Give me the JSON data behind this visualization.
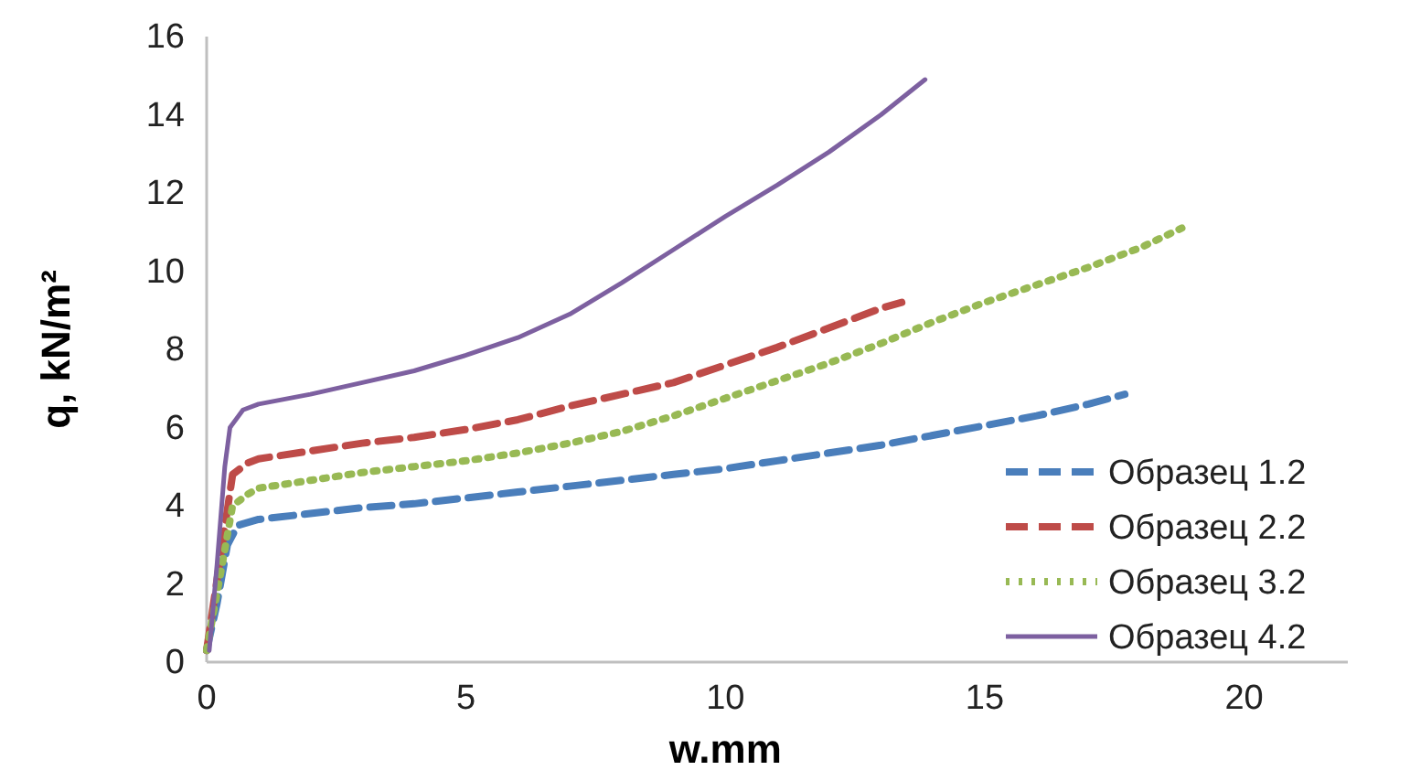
{
  "chart_data": {
    "type": "line",
    "xlabel": "w.mm",
    "ylabel": "q, kN/m²",
    "xlim": [
      0,
      22
    ],
    "ylim": [
      0,
      16
    ],
    "xticks": [
      0,
      5,
      10,
      15,
      20
    ],
    "yticks": [
      0,
      2,
      4,
      6,
      8,
      10,
      12,
      14,
      16
    ],
    "grid": false,
    "legend": "bottom right",
    "marker": "none",
    "series": [
      {
        "name": "Образец 1.2",
        "color": "#4a7ebb",
        "line_style": "dashed",
        "x": [
          0,
          0.2,
          0.4,
          0.6,
          1,
          2,
          3,
          4,
          5,
          6,
          7,
          8,
          9,
          10,
          11,
          12,
          13,
          14,
          15,
          16,
          17,
          17.7
        ],
        "values": [
          0.3,
          1.5,
          3.0,
          3.5,
          3.65,
          3.8,
          3.95,
          4.05,
          4.2,
          4.35,
          4.5,
          4.65,
          4.8,
          4.95,
          5.15,
          5.35,
          5.55,
          5.8,
          6.05,
          6.3,
          6.6,
          6.85
        ]
      },
      {
        "name": "Образец 2.2",
        "color": "#be4b48",
        "line_style": "dashed",
        "x": [
          0,
          0.3,
          0.5,
          0.8,
          1,
          2,
          3,
          4,
          5,
          6,
          7,
          8,
          9,
          10,
          11,
          12,
          13,
          13.4
        ],
        "values": [
          0.3,
          3.0,
          4.8,
          5.1,
          5.2,
          5.4,
          5.6,
          5.75,
          5.95,
          6.2,
          6.55,
          6.85,
          7.15,
          7.6,
          8.05,
          8.55,
          9.05,
          9.2
        ]
      },
      {
        "name": "Образец 3.2",
        "color": "#98b954",
        "line_style": "dotted",
        "x": [
          0,
          0.3,
          0.5,
          0.8,
          1,
          2,
          3,
          4,
          5,
          6,
          7,
          8,
          9,
          10,
          11,
          12,
          13,
          14,
          15,
          16,
          17,
          18,
          18.8
        ],
        "values": [
          0.3,
          2.5,
          4.0,
          4.3,
          4.45,
          4.65,
          4.85,
          5.0,
          5.15,
          5.35,
          5.6,
          5.9,
          6.3,
          6.75,
          7.2,
          7.65,
          8.15,
          8.7,
          9.2,
          9.65,
          10.1,
          10.6,
          11.1
        ]
      },
      {
        "name": "Образец 4.2",
        "color": "#7d60a0",
        "line_style": "solid",
        "x": [
          0.05,
          0.2,
          0.35,
          0.45,
          0.7,
          1,
          2,
          3,
          4,
          5,
          6,
          7,
          8,
          9,
          10,
          11,
          12,
          13,
          13.85
        ],
        "values": [
          0.3,
          2.5,
          5.0,
          6.0,
          6.45,
          6.6,
          6.85,
          7.15,
          7.45,
          7.85,
          8.3,
          8.9,
          9.7,
          10.55,
          11.4,
          12.2,
          13.05,
          14.0,
          14.9
        ]
      }
    ]
  }
}
